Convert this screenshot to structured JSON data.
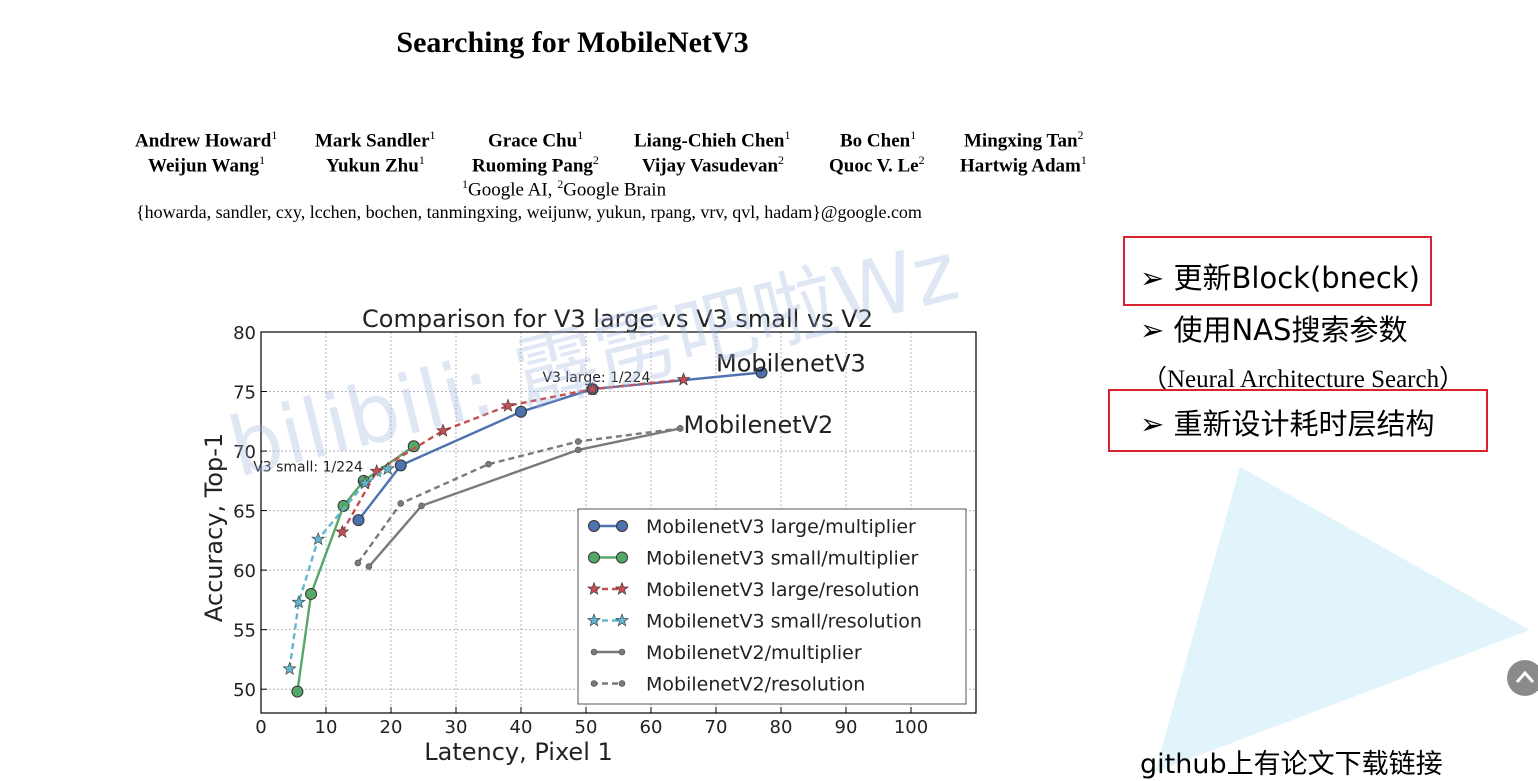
{
  "paper": {
    "title": "Searching for MobileNetV3",
    "authors_row1": [
      {
        "name": "Andrew Howard",
        "sup": "1"
      },
      {
        "name": "Mark Sandler",
        "sup": "1"
      },
      {
        "name": "Grace Chu",
        "sup": "1"
      },
      {
        "name": "Liang-Chieh Chen",
        "sup": "1"
      },
      {
        "name": "Bo Chen",
        "sup": "1"
      },
      {
        "name": "Mingxing Tan",
        "sup": "2"
      }
    ],
    "authors_row2": [
      {
        "name": "Weijun Wang",
        "sup": "1"
      },
      {
        "name": "Yukun Zhu",
        "sup": "1"
      },
      {
        "name": "Ruoming Pang",
        "sup": "2"
      },
      {
        "name": "Vijay Vasudevan",
        "sup": "2"
      },
      {
        "name": "Quoc V. Le",
        "sup": "2"
      },
      {
        "name": "Hartwig Adam",
        "sup": "1"
      }
    ],
    "affiliation": {
      "sup1": "1",
      "aff1": "Google AI, ",
      "sup2": "2",
      "aff2": "Google Brain"
    },
    "email": "{howarda, sandler, cxy, lcchen, bochen, tanmingxing, weijunw, yukun, rpang, vrv, qvl, hadam}@google.com"
  },
  "notes": {
    "bullet1": "➢ 更新Block(bneck)",
    "bullet2": "➢ 使用NAS搜索参数",
    "bullet2_sub": "（Neural Architecture Search）",
    "bullet3": "➢ 重新设计耗时层结构",
    "github": "github上有论文下载链接",
    "watermark": "bilibili: 霹雳吧啦Wz",
    "box_color": "#d9232e"
  },
  "chart_data": {
    "type": "line",
    "title": "Comparison for V3 large vs V3 small vs V2",
    "xlabel": "Latency, Pixel 1",
    "ylabel": "Accuracy, Top-1",
    "xlim": [
      0,
      110
    ],
    "ylim": [
      48,
      80
    ],
    "xticks": [
      0,
      10,
      20,
      30,
      40,
      50,
      60,
      70,
      80,
      90,
      100
    ],
    "yticks": [
      50,
      55,
      60,
      65,
      70,
      75,
      80
    ],
    "grid": true,
    "legend_position": "lower-right",
    "series": [
      {
        "name": "MobilenetV3 large/multiplier",
        "color": "#4c72b0",
        "style": "solid",
        "marker": "circle",
        "x": [
          15,
          21.5,
          40,
          51,
          77
        ],
        "y": [
          64.2,
          68.8,
          73.3,
          75.2,
          76.6
        ]
      },
      {
        "name": "MobilenetV3 small/multiplier",
        "color": "#55a868",
        "style": "solid",
        "marker": "circle",
        "x": [
          5.6,
          7.7,
          12.7,
          15.8,
          23.5
        ],
        "y": [
          49.8,
          58.0,
          65.4,
          67.5,
          70.4
        ]
      },
      {
        "name": "MobilenetV3 large/resolution",
        "color": "#c44e52",
        "style": "dashed",
        "marker": "star",
        "x": [
          12.5,
          17.8,
          28,
          38,
          51,
          65
        ],
        "y": [
          63.2,
          68.3,
          71.7,
          73.8,
          75.2,
          76.0
        ]
      },
      {
        "name": "MobilenetV3 small/resolution",
        "color": "#64b5cd",
        "style": "dashed",
        "marker": "star",
        "x": [
          4.4,
          5.8,
          8.8,
          16,
          19.5
        ],
        "y": [
          51.7,
          57.3,
          62.6,
          67.3,
          68.5
        ]
      },
      {
        "name": "MobilenetV2/multiplier",
        "color": "#7a7a7a",
        "style": "solid",
        "marker": "dot",
        "x": [
          16.6,
          24.7,
          48.8,
          64.5
        ],
        "y": [
          60.3,
          65.4,
          70.1,
          71.9
        ]
      },
      {
        "name": "MobilenetV2/resolution",
        "color": "#7a7a7a",
        "style": "dashed",
        "marker": "dot",
        "x": [
          14.9,
          21.5,
          35,
          48.8,
          64.5
        ],
        "y": [
          60.6,
          65.6,
          68.9,
          70.8,
          71.9
        ]
      }
    ],
    "annotations": [
      {
        "text": "MobilenetV3",
        "x": 70,
        "y": 76.7
      },
      {
        "text": "MobilenetV2",
        "x": 65,
        "y": 71.5
      },
      {
        "text": "V3 large: 1/224",
        "x": 43.3,
        "y": 75.8
      },
      {
        "text": "V3 small: 1/224",
        "x": -1.2,
        "y": 68.3
      }
    ]
  }
}
